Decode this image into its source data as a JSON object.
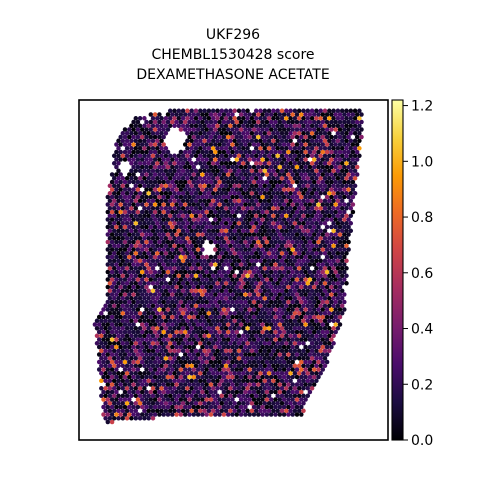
{
  "chart_data": {
    "type": "scatter",
    "plot_kind": "spatial transcriptomics hexagonal spot map",
    "title_lines": [
      "UKF296",
      "CHEMBL1530428 score",
      "DEXAMETHASONE ACETATE"
    ],
    "xlabel": "",
    "ylabel": "",
    "axes_ticks_visible": false,
    "grid": false,
    "colormap": "inferno",
    "color_stops": [
      "#000004",
      "#1b0c41",
      "#4a0c6b",
      "#781c6d",
      "#a52c60",
      "#cf4446",
      "#ed6925",
      "#fb9b06",
      "#f7d13d",
      "#fcffa4"
    ],
    "colorbar": {
      "position": "right",
      "range": [
        0.0,
        1.22
      ],
      "ticks": [
        0.0,
        0.2,
        0.4,
        0.6,
        0.8,
        1.0,
        1.2
      ],
      "tick_labels": [
        "0.0",
        "0.2",
        "0.4",
        "0.6",
        "0.8",
        "1.0",
        "1.2"
      ]
    },
    "value_distribution": {
      "majority_range": [
        0.0,
        0.3
      ],
      "typical": 0.15,
      "occasional_high_range": [
        0.4,
        0.75
      ],
      "max_observed": 1.05
    },
    "tissue_outline_data_coords": [
      [
        0.18,
        0.95
      ],
      [
        0.3,
        0.97
      ],
      [
        0.92,
        0.97
      ],
      [
        0.92,
        0.92
      ],
      [
        0.88,
        0.6
      ],
      [
        0.86,
        0.38
      ],
      [
        0.8,
        0.22
      ],
      [
        0.73,
        0.1
      ],
      [
        0.73,
        0.07
      ],
      [
        0.32,
        0.07
      ],
      [
        0.08,
        0.05
      ],
      [
        0.05,
        0.35
      ],
      [
        0.09,
        0.4
      ],
      [
        0.09,
        0.7
      ],
      [
        0.12,
        0.88
      ]
    ],
    "tissue_holes_data_coords": [
      [
        0.31,
        0.88,
        0.035
      ],
      [
        0.42,
        0.56,
        0.02
      ],
      [
        0.15,
        0.8,
        0.02
      ]
    ]
  }
}
